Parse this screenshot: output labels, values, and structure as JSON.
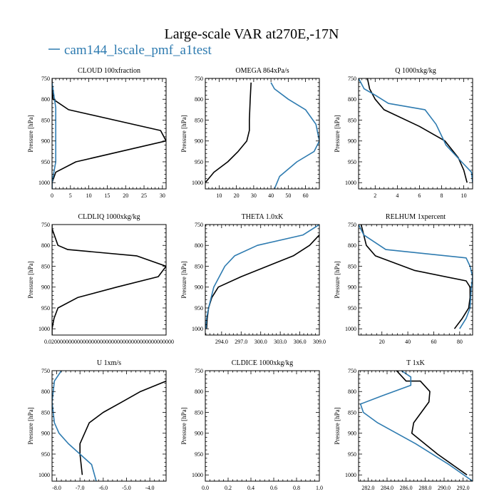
{
  "title": "Large-scale VAR at270E,-17N",
  "legend": {
    "label": "cam144_lscale_pmf_a1test",
    "color": "#2e7bb0",
    "placement": "top-left"
  },
  "colors": {
    "black_series": "#000000",
    "blue_series": "#2e7bb0"
  },
  "chart_data": [
    {
      "type": "line",
      "title": "CLOUD  100xfraction",
      "ylabel": "Pressure [hPa]",
      "xlim": [
        0,
        31
      ],
      "ylim": [
        1015,
        750
      ],
      "xticks": [
        "0",
        "5",
        "10",
        "15",
        "20",
        "25",
        "30"
      ],
      "xtick_values": [
        0,
        5,
        10,
        15,
        20,
        25,
        30
      ],
      "yticks": [
        "750",
        "800",
        "850",
        "900",
        "950",
        "1000"
      ],
      "ytick_values": [
        750,
        800,
        850,
        900,
        950,
        1000
      ],
      "series": [
        {
          "color": "#000000",
          "x": [
            0,
            0,
            0.3,
            4.5,
            29.5,
            31,
            6.5,
            1.0,
            0,
            0
          ],
          "y": [
            750,
            770,
            800,
            825,
            875,
            900,
            950,
            975,
            1000,
            1015
          ]
        },
        {
          "color": "#2e7bb0",
          "x": [
            0,
            0.5,
            1.0,
            1.0,
            1.0,
            1.0,
            1.0,
            0.5,
            0,
            0
          ],
          "y": [
            760,
            790,
            820,
            850,
            880,
            920,
            950,
            975,
            1000,
            1015
          ]
        }
      ]
    },
    {
      "type": "line",
      "title": "OMEGA  864xPa/s",
      "ylabel": "Pressure [hPa]",
      "xlim": [
        2,
        68
      ],
      "ylim": [
        1015,
        750
      ],
      "xticks": [
        "10",
        "20",
        "30",
        "40",
        "50",
        "60"
      ],
      "xtick_values": [
        10,
        20,
        30,
        40,
        50,
        60
      ],
      "yticks": [
        "750",
        "800",
        "850",
        "900",
        "950",
        "1000"
      ],
      "ytick_values": [
        750,
        800,
        850,
        900,
        950,
        1000
      ],
      "series": [
        {
          "color": "#000000",
          "x": [
            28.5,
            28,
            27.5,
            27.5,
            26,
            21,
            15,
            7,
            2
          ],
          "y": [
            760,
            800,
            850,
            875,
            900,
            925,
            950,
            975,
            1000
          ]
        },
        {
          "color": "#2e7bb0",
          "x": [
            40,
            42,
            50,
            60,
            66,
            68,
            65,
            55,
            45,
            42
          ],
          "y": [
            760,
            775,
            800,
            825,
            860,
            900,
            925,
            950,
            985,
            1015
          ]
        }
      ]
    },
    {
      "type": "line",
      "title": "Q  1000xkg/kg",
      "ylabel": "Pressure [hPa]",
      "xlim": [
        0.5,
        10.8
      ],
      "ylim": [
        1015,
        750
      ],
      "xticks": [
        "2",
        "4",
        "6",
        "8",
        "10"
      ],
      "xtick_values": [
        2,
        4,
        6,
        8,
        10
      ],
      "yticks": [
        "750",
        "800",
        "850",
        "900",
        "950",
        "1000"
      ],
      "ytick_values": [
        750,
        800,
        850,
        900,
        950,
        1000
      ],
      "series": [
        {
          "color": "#000000",
          "x": [
            1.3,
            1.5,
            2.0,
            2.8,
            6.0,
            8.3,
            9.5,
            10.0,
            10.3
          ],
          "y": [
            750,
            775,
            800,
            825,
            865,
            900,
            940,
            970,
            1000
          ]
        },
        {
          "color": "#2e7bb0",
          "x": [
            0.5,
            1.0,
            2.0,
            3.2,
            6.5,
            7.5,
            8.4,
            9.8,
            10.7,
            10.8
          ],
          "y": [
            750,
            775,
            790,
            810,
            825,
            860,
            910,
            950,
            975,
            1000
          ]
        }
      ]
    },
    {
      "type": "line",
      "title": "CLDLIQ  1000xkg/kg",
      "ylabel": "Pressure [hPa]",
      "xlim": [
        0.02,
        0.6
      ],
      "ylim": [
        1015,
        750
      ],
      "xticks": [
        "0.02000000000000000000000000000000000000000000"
      ],
      "xtick_values": [
        0.02
      ],
      "xtick_label_x": 0.31,
      "yticks": [
        "750",
        "800",
        "850",
        "900",
        "950",
        "1000"
      ],
      "ytick_values": [
        750,
        800,
        850,
        900,
        950,
        1000
      ],
      "series": [
        {
          "color": "#000000",
          "x": [
            0.02,
            0.02,
            0.05,
            0.1,
            0.45,
            0.6,
            0.56,
            0.35,
            0.15,
            0.05,
            0.03,
            0.02,
            0.02
          ],
          "y": [
            750,
            760,
            800,
            810,
            825,
            850,
            875,
            900,
            925,
            950,
            975,
            1000,
            1015
          ]
        }
      ]
    },
    {
      "type": "line",
      "title": "THETA  1.0xK",
      "ylabel": "Pressure [hPa]",
      "xlim": [
        291.5,
        309
      ],
      "ylim": [
        1015,
        750
      ],
      "xticks": [
        "294.0",
        "297.0",
        "300.0",
        "303.0",
        "306.0",
        "309.0"
      ],
      "xtick_values": [
        294,
        297,
        300,
        303,
        306,
        309
      ],
      "yticks": [
        "750",
        "800",
        "850",
        "900",
        "950",
        "1000"
      ],
      "ytick_values": [
        750,
        800,
        850,
        900,
        950,
        1000
      ],
      "series": [
        {
          "color": "#000000",
          "x": [
            309.0,
            307.5,
            305.0,
            297.0,
            293.5,
            292.5,
            292.0,
            291.8,
            291.7
          ],
          "y": [
            775,
            800,
            825,
            875,
            900,
            925,
            950,
            975,
            1000
          ]
        },
        {
          "color": "#2e7bb0",
          "x": [
            309.0,
            306.5,
            299.5,
            296.0,
            294.5,
            292.8,
            292.0,
            291.7,
            291.6
          ],
          "y": [
            750,
            775,
            800,
            825,
            850,
            900,
            950,
            975,
            1000
          ]
        }
      ]
    },
    {
      "type": "line",
      "title": "RELHUM  1xpercent",
      "ylabel": "Pressure [hPa]",
      "xlim": [
        2,
        90
      ],
      "ylim": [
        1015,
        750
      ],
      "xticks": [
        "20",
        "40",
        "60",
        "80"
      ],
      "xtick_values": [
        20,
        40,
        60,
        80
      ],
      "yticks": [
        "750",
        "800",
        "850",
        "900",
        "950",
        "1000"
      ],
      "ytick_values": [
        750,
        800,
        850,
        900,
        950,
        1000
      ],
      "series": [
        {
          "color": "#000000",
          "x": [
            4,
            8,
            15,
            45,
            85,
            88,
            88,
            87,
            82,
            76
          ],
          "y": [
            750,
            800,
            825,
            860,
            885,
            900,
            925,
            950,
            975,
            1000
          ]
        },
        {
          "color": "#2e7bb0",
          "x": [
            2,
            6,
            23,
            85,
            88,
            90,
            89,
            88,
            85,
            80
          ],
          "y": [
            750,
            775,
            810,
            830,
            850,
            875,
            900,
            950,
            975,
            1000
          ]
        }
      ]
    },
    {
      "type": "line",
      "title": "U  1xm/s",
      "ylabel": "Pressure [hPa]",
      "xlim": [
        -8.2,
        -3.3
      ],
      "ylim": [
        1015,
        750
      ],
      "xticks": [
        "-8.0",
        "-7.0",
        "-6.0",
        "-5.0",
        "-4.0"
      ],
      "xtick_values": [
        -8,
        -7,
        -6,
        -5,
        -4
      ],
      "yticks": [
        "750",
        "800",
        "850",
        "900",
        "950",
        "1000"
      ],
      "ytick_values": [
        750,
        800,
        850,
        900,
        950,
        1000
      ],
      "series": [
        {
          "color": "#000000",
          "x": [
            -3.3,
            -4.4,
            -5.2,
            -6.0,
            -6.6,
            -7.0,
            -7.0,
            -6.9
          ],
          "y": [
            775,
            800,
            825,
            850,
            875,
            925,
            950,
            1000
          ]
        },
        {
          "color": "#2e7bb0",
          "x": [
            -7.8,
            -8.1,
            -8.2,
            -8.1,
            -7.9,
            -7.5,
            -7.0,
            -6.5,
            -6.3
          ],
          "y": [
            750,
            775,
            825,
            875,
            900,
            925,
            950,
            975,
            1015
          ]
        }
      ]
    },
    {
      "type": "line",
      "title": "CLDICE  1000xkg/kg",
      "ylabel": "Pressure [hPa]",
      "xlim": [
        0,
        1
      ],
      "ylim": [
        1015,
        750
      ],
      "xticks": [
        "0.0",
        "0.2",
        "0.4",
        "0.6",
        "0.8",
        "1.0"
      ],
      "xtick_values": [
        0,
        0.2,
        0.4,
        0.6,
        0.8,
        1.0
      ],
      "yticks": [
        "750",
        "800",
        "850",
        "900",
        "950",
        "1000"
      ],
      "ytick_values": [
        750,
        800,
        850,
        900,
        950,
        1000
      ],
      "series": []
    },
    {
      "type": "line",
      "title": "T  1xK",
      "ylabel": "Pressure [hPa]",
      "xlim": [
        281,
        293
      ],
      "ylim": [
        1015,
        750
      ],
      "xticks": [
        "282.0",
        "284.0",
        "286.0",
        "288.0",
        "290.0",
        "292.0"
      ],
      "xtick_values": [
        282,
        284,
        286,
        288,
        290,
        292
      ],
      "yticks": [
        "750",
        "800",
        "850",
        "900",
        "950",
        "1000"
      ],
      "ytick_values": [
        750,
        800,
        850,
        900,
        950,
        1000
      ],
      "series": [
        {
          "color": "#000000",
          "x": [
            285.0,
            286.0,
            287.5,
            288.5,
            288.4,
            286.8,
            286.6,
            289.3,
            292.4
          ],
          "y": [
            750,
            775,
            775,
            800,
            825,
            875,
            900,
            950,
            1000
          ]
        },
        {
          "color": "#2e7bb0",
          "x": [
            285.5,
            286.5,
            286.5,
            283.5,
            281.2,
            281.5,
            283.0,
            287.0,
            290.5,
            293.0
          ],
          "y": [
            750,
            765,
            785,
            810,
            830,
            850,
            875,
            925,
            975,
            1015
          ]
        }
      ]
    }
  ]
}
